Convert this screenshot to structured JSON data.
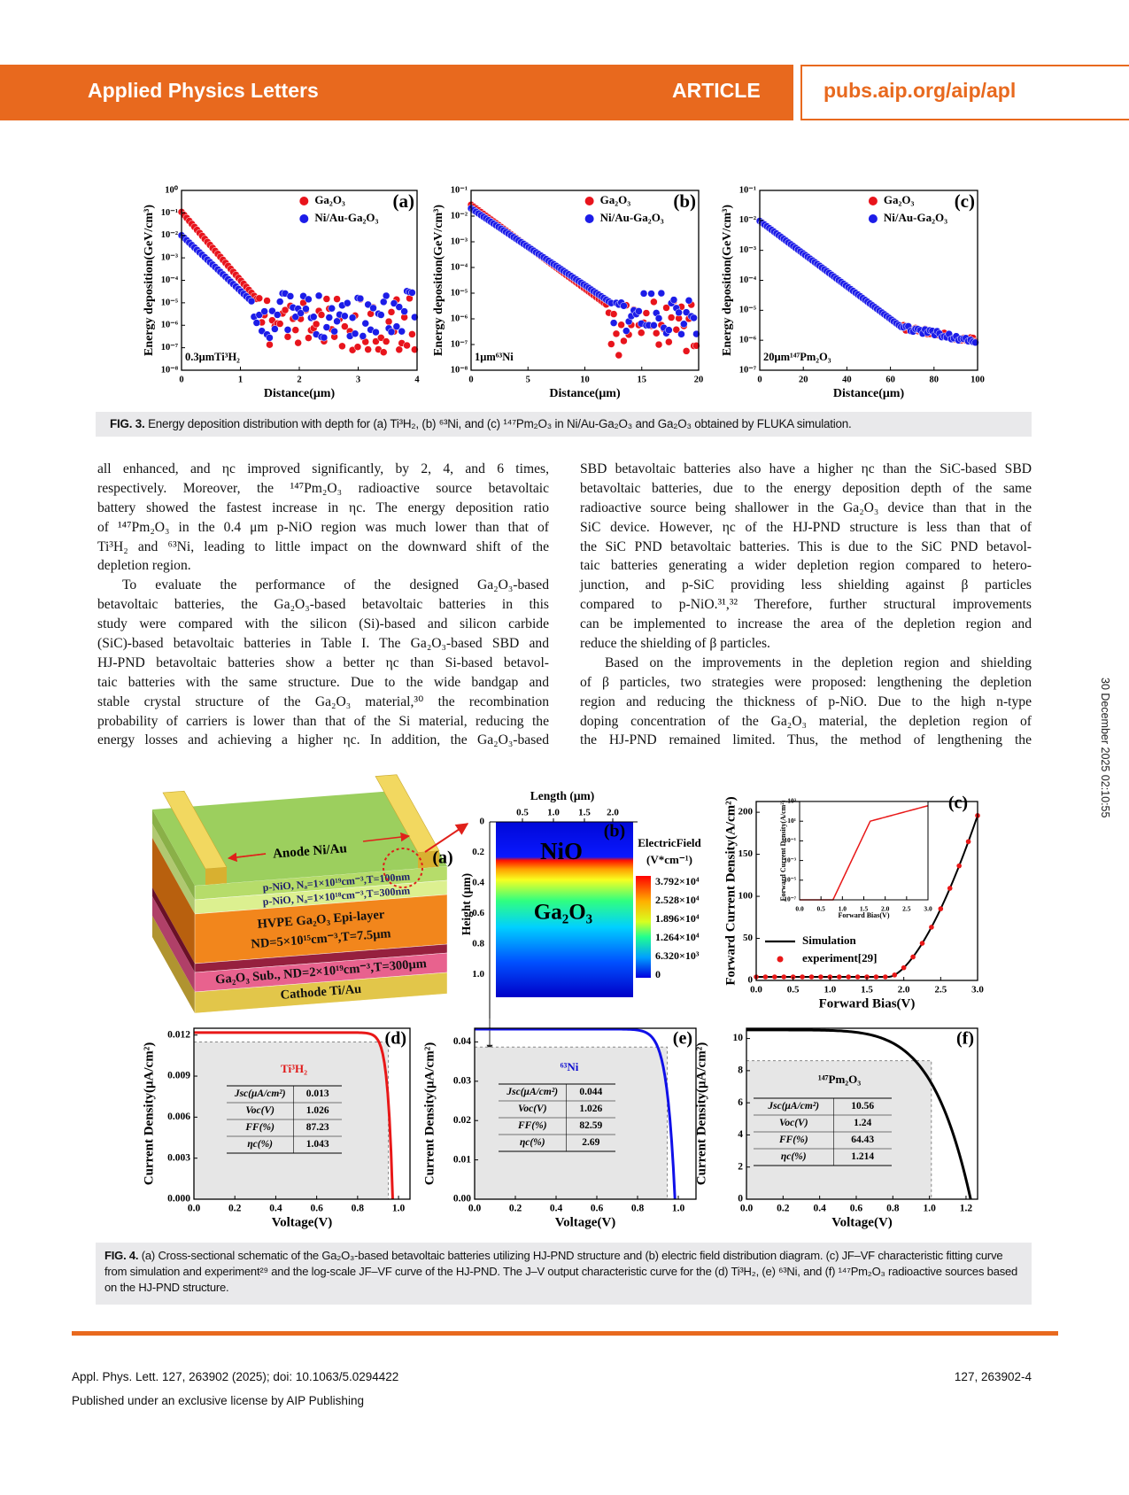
{
  "header": {
    "journal": "Applied Physics Letters",
    "article": "ARTICLE",
    "url": "pubs.aip.org/aip/apl"
  },
  "figure3": {
    "panels": [
      {
        "label": "(a)",
        "ylabel": "Energy deposition(GeV/cm³)",
        "xlabel": "Distance(μm)",
        "yticks": [
          "10⁰",
          "10⁻¹",
          "10⁻²",
          "10⁻³",
          "10⁻⁴",
          "10⁻⁵",
          "10⁻⁶",
          "10⁻⁷",
          "10⁻⁸"
        ],
        "xticks": [
          "0",
          "1",
          "2",
          "3",
          "4"
        ],
        "legend": [
          "Ga₂O₃",
          "Ni/Au-Ga₂O₃"
        ],
        "annotation": "0.3μmTi³H₂"
      },
      {
        "label": "(b)",
        "ylabel": "Energy deposition(GeV/cm³)",
        "xlabel": "Distance(μm)",
        "yticks": [
          "10⁻¹",
          "10⁻²",
          "10⁻³",
          "10⁻⁴",
          "10⁻⁵",
          "10⁻⁶",
          "10⁻⁷",
          "10⁻⁸"
        ],
        "xticks": [
          "0",
          "5",
          "10",
          "15",
          "20"
        ],
        "legend": [
          "Ga₂O₃",
          "Ni/Au-Ga₂O₃"
        ],
        "annotation": "1μm⁶³Ni"
      },
      {
        "label": "(c)",
        "ylabel": "Energy deposition(GeV/cm³)",
        "xlabel": "Distance(μm)",
        "yticks": [
          "10⁻¹",
          "10⁻²",
          "10⁻³",
          "10⁻⁴",
          "10⁻⁵",
          "10⁻⁶",
          "10⁻⁷"
        ],
        "xticks": [
          "0",
          "20",
          "40",
          "60",
          "80",
          "100"
        ],
        "legend": [
          "Ga₂O₃",
          "Ni/Au-Ga₂O₃"
        ],
        "annotation": "20μm¹⁴⁷Pm₂O₃"
      }
    ],
    "caption": {
      "label": "FIG. 3.",
      "text": "Energy deposition distribution with depth for (a) Ti³H₂, (b) ⁶³Ni, and (c) ¹⁴⁷Pm₂O₃ in Ni/Au-Ga₂O₃ and Ga₂O₃ obtained by FLUKA simulation."
    }
  },
  "body": {
    "left": [
      [
        "all enhanced, and ηc improved significantly, by 2, 4, and 6 times,",
        "respectively. Moreover, the ¹⁴⁷Pm₂O₃ radioactive source betavoltaic",
        "battery showed the fastest increase in ηc. The energy deposition ratio",
        "of ¹⁴⁷Pm₂O₃ in the 0.4 μm p-NiO region was much lower than that of",
        "Ti³H₂ and ⁶³Ni, leading to little impact on the downward shift of the",
        "depletion region."
      ],
      [
        "To evaluate the performance of the designed Ga₂O₃-based",
        "betavoltaic batteries, the Ga₂O₃-based betavoltaic batteries in this",
        "study were compared with the silicon (Si)-based and silicon carbide",
        "(SiC)-based betavoltaic batteries in Table I. The Ga₂O₃-based SBD and",
        "HJ-PND betavoltaic batteries show a better ηc than Si-based betavol-",
        "taic batteries with the same structure. Due to the wide bandgap and",
        "stable crystal structure of the Ga₂O₃ material,³⁰ the recombination",
        "probability of carriers is lower than that of the Si material, reducing the",
        "energy losses and achieving a higher ηc. In addition, the Ga₂O₃-based"
      ]
    ],
    "right": [
      [
        "SBD betavoltaic batteries also have a higher ηc than the SiC-based SBD",
        "betavoltaic batteries, due to the energy deposition depth of the same",
        "radioactive source being shallower in the Ga₂O₃ device than that in the",
        "SiC device. However, ηc of the HJ-PND structure is less than that of",
        "the SiC PND betavoltaic batteries. This is due to the SiC PND betavol-",
        "taic batteries generating a wider depletion region compared to hetero-",
        "junction, and p-SiC providing less shielding against β particles",
        "compared to p-NiO.³¹,³² Therefore, further structural improvements",
        "can be implemented to increase the area of the depletion region and",
        "reduce the shielding of β particles."
      ],
      [
        "Based on the improvements in the depletion region and shielding",
        "of β particles, two strategies were proposed: lengthening the depletion",
        "region and reducing the thickness of p-NiO. Due to the high n-type",
        "doping concentration of the Ga₂O₃ material, the depletion region of",
        "the HJ-PND remained limited. Thus, the method of lengthening the"
      ]
    ]
  },
  "figure4": {
    "a": {
      "label": "(a)",
      "anode": "Anode Ni/Au",
      "layers": [
        "p-NiO, Nₐ=1×10¹⁹cm⁻³,T=100nm",
        "p-NiO, Nₐ=1×10¹⁸cm⁻³,T=300nm",
        "HVPE Ga₂O₃ Epi-layer",
        "ND=5×10¹⁵cm⁻³,T=7.5μm",
        "Ga₂O₃ Sub., ND=2×10¹⁹cm⁻³,T=300μm",
        "Cathode Ti/Au"
      ]
    },
    "b": {
      "label": "(b)",
      "xlabel": "Length (μm)",
      "xticks": [
        "0.5",
        "1.0",
        "1.5",
        "2.0"
      ],
      "ylabel": "Height (μm)",
      "yticks": [
        "0",
        "0.2",
        "0.4",
        "0.6",
        "0.8",
        "1.0"
      ],
      "regions": [
        "NiO",
        "Ga₂O₃"
      ],
      "legend_title": [
        "ElectricField",
        "(V*cm⁻¹)"
      ],
      "colorbar": [
        "3.792×10⁴",
        "2.528×10⁴",
        "1.896×10⁴",
        "1.264×10⁴",
        "6.320×10³",
        "0"
      ]
    },
    "c": {
      "label": "(c)",
      "ylabel": "Forward Current Density(A/cm²)",
      "xlabel": "Forward Bias(V)",
      "yticks": [
        "0",
        "50",
        "100",
        "150",
        "200"
      ],
      "xticks": [
        "0.0",
        "0.5",
        "1.0",
        "1.5",
        "2.0",
        "2.5",
        "3.0"
      ],
      "legend": [
        "Simulation",
        "experiment[29]"
      ],
      "inset": {
        "ylabel": "Forward Current Density(A/cm²)",
        "xlabel": "Forward Bias(V)",
        "yticks": [
          "10³",
          "10¹",
          "10⁻¹",
          "10⁻³",
          "10⁻⁵",
          "10⁻⁷"
        ],
        "xticks": [
          "0.0",
          "0.5",
          "1.0",
          "1.5",
          "2.0",
          "2.5",
          "3.0"
        ]
      }
    },
    "jv": [
      {
        "label": "(d)",
        "ylabel": "Current Density(μA/cm²)",
        "xlabel": "Voltage(V)",
        "yticks": [
          "0.000",
          "0.003",
          "0.006",
          "0.009",
          "0.012"
        ],
        "xticks": [
          "0.0",
          "0.2",
          "0.4",
          "0.6",
          "0.8",
          "1.0"
        ],
        "source": "Ti³H₂",
        "table": [
          [
            "Jsc(μA/cm²)",
            "0.013"
          ],
          [
            "Voc(V)",
            "1.026"
          ],
          [
            "FF(%)",
            "87.23"
          ],
          [
            "ηc(%)",
            "1.043"
          ]
        ]
      },
      {
        "label": "(e)",
        "ylabel": "Current Density(μA/cm²)",
        "xlabel": "Voltage(V)",
        "yticks": [
          "0.00",
          "0.01",
          "0.02",
          "0.03",
          "0.04"
        ],
        "xticks": [
          "0.0",
          "0.2",
          "0.4",
          "0.6",
          "0.8",
          "1.0"
        ],
        "source": "⁶³Ni",
        "table": [
          [
            "Jsc(μA/cm²)",
            "0.044"
          ],
          [
            "Voc(V)",
            "1.026"
          ],
          [
            "FF(%)",
            "82.59"
          ],
          [
            "ηc(%)",
            "2.69"
          ]
        ]
      },
      {
        "label": "(f)",
        "ylabel": "Current Density(μA/cm²)",
        "xlabel": "Voltage(V)",
        "yticks": [
          "0",
          "2",
          "4",
          "6",
          "8",
          "10"
        ],
        "xticks": [
          "0.0",
          "0.2",
          "0.4",
          "0.6",
          "0.8",
          "1.0",
          "1.2"
        ],
        "source": "¹⁴⁷Pm₂O₃",
        "table": [
          [
            "Jsc(μA/cm²)",
            "10.56"
          ],
          [
            "Voc(V)",
            "1.24"
          ],
          [
            "FF(%)",
            "64.43"
          ],
          [
            "ηc(%)",
            "1.214"
          ]
        ]
      }
    ],
    "caption": {
      "label": "FIG. 4.",
      "text": "(a) Cross-sectional schematic of the Ga₂O₃-based betavoltaic batteries utilizing HJ-PND structure and (b) electric field distribution diagram. (c) JF–VF characteristic fitting curve from simulation and experiment²⁹ and the log-scale JF–VF curve of the HJ-PND. The J–V output characteristic curve for the (d) Ti³H₂, (e) ⁶³Ni, and (f) ¹⁴⁷Pm₂O₃ radioactive sources based on the HJ-PND structure."
    }
  },
  "footer": {
    "citation": "Appl. Phys. Lett. 127, 263902 (2025); doi: 10.1063/5.0294422",
    "page": "127, 263902-4",
    "license": "Published under an exclusive license by AIP Publishing"
  },
  "stamp": "30 December 2025 02:10:55"
}
